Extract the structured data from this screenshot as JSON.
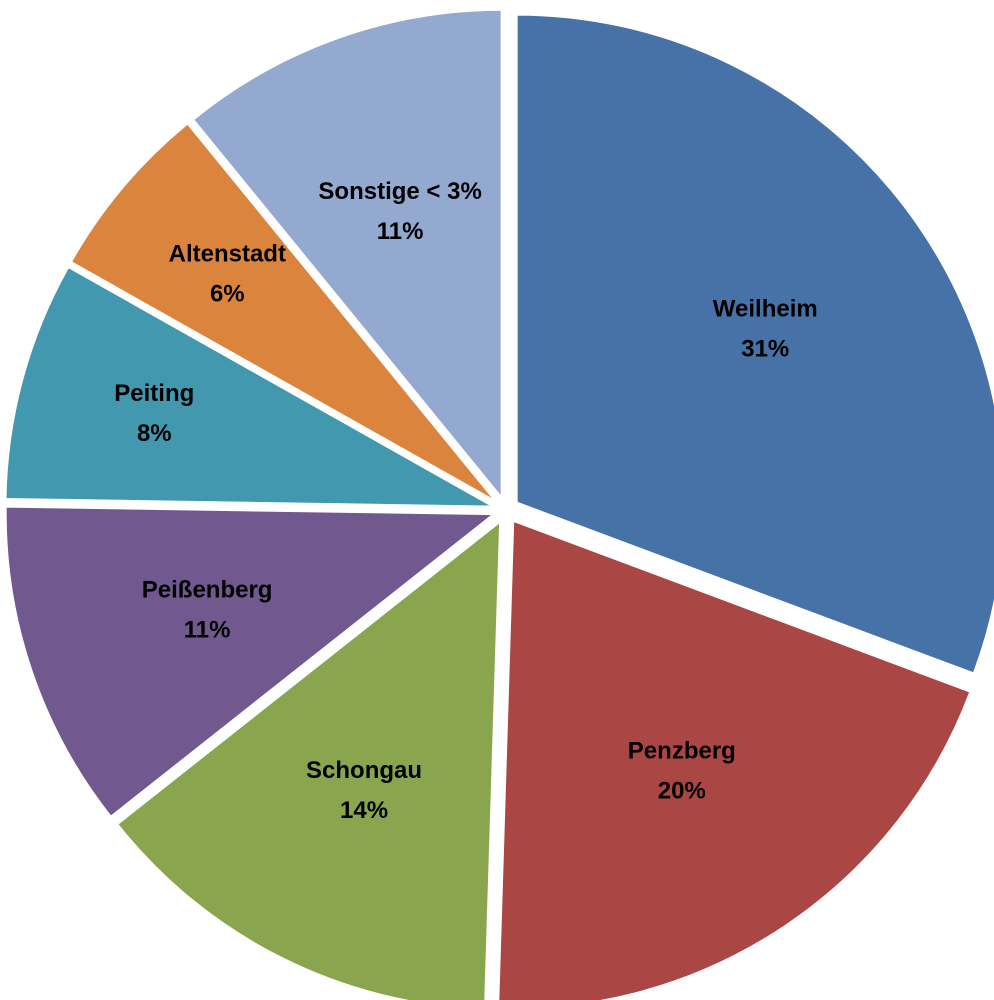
{
  "chart_data": {
    "type": "pie",
    "categories": [
      "Weilheim",
      "Penzberg",
      "Schongau",
      "Peißenberg",
      "Peiting",
      "Altenstadt",
      "Sonstige < 3%"
    ],
    "values": [
      31,
      20,
      14,
      11,
      8,
      6,
      11
    ],
    "value_labels": [
      "31%",
      "20%",
      "14%",
      "11%",
      "8%",
      "6%",
      "11%"
    ],
    "colors": [
      "#4672a8",
      "#aa4643",
      "#89a54e",
      "#71588f",
      "#4198af",
      "#db843d",
      "#93a9cf"
    ]
  }
}
